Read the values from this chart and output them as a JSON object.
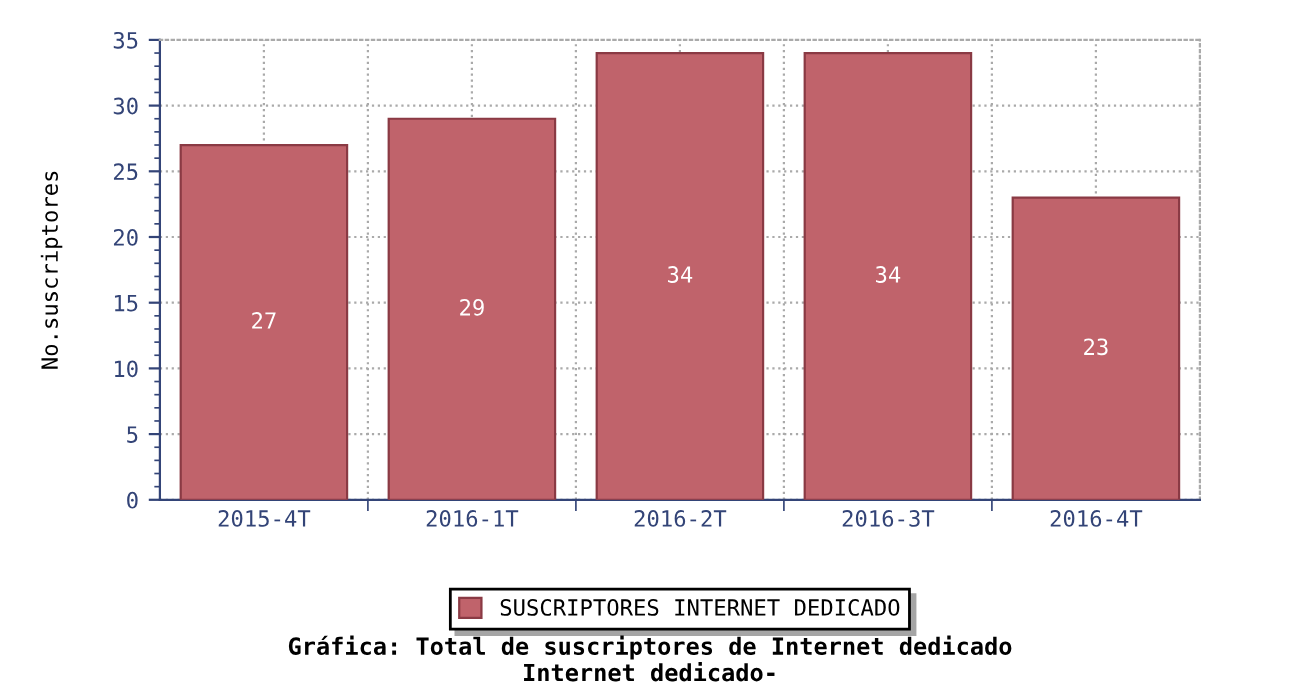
{
  "chart_data": {
    "type": "bar",
    "categories": [
      "2015-4T",
      "2016-1T",
      "2016-2T",
      "2016-3T",
      "2016-4T"
    ],
    "series": [
      {
        "name": "SUSCRIPTORES INTERNET DEDICADO",
        "color": "#c0636b",
        "values": [
          27,
          29,
          34,
          34,
          23
        ]
      }
    ],
    "ylabel": "No.suscriptores",
    "title": "Gráfica: Total de suscriptores de Internet dedicado\nInternet dedicado-",
    "ylim": [
      0,
      35
    ],
    "yticks": [
      0,
      5,
      10,
      15,
      20,
      25,
      30,
      35
    ],
    "grid": true,
    "legend": "bottom",
    "data_labels": true
  }
}
